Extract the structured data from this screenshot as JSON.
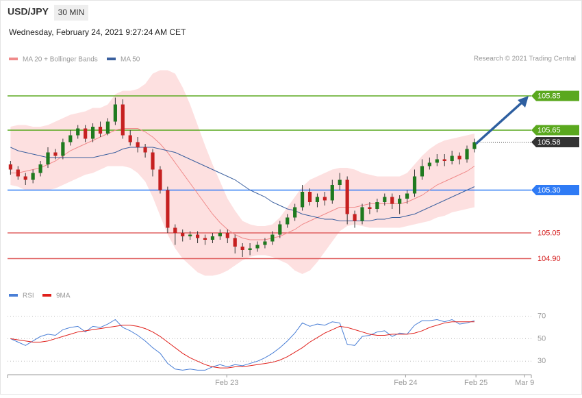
{
  "chart_data": [
    {
      "type": "candlestick",
      "title": "USD/JPY",
      "timeframe": "30 MIN",
      "subtitle": "Wednesday, February 24, 2021 9:27:24 AM CET",
      "source": "Research © 2021 Trading Central",
      "xlim": [
        -0.4,
        69.6
      ],
      "ylim": [
        104.77,
        106.01
      ],
      "up_color": "#1f7a1f",
      "down_color": "#c62020",
      "open": [
        105.45,
        105.42,
        105.38,
        105.36,
        105.4,
        105.45,
        105.52,
        105.5,
        105.58,
        105.62,
        105.66,
        105.6,
        105.67,
        105.63,
        105.7,
        105.8,
        105.62,
        105.58,
        105.55,
        105.52,
        105.42,
        105.3,
        105.08,
        105.05,
        105.03,
        105.04,
        105.02,
        105.01,
        105.03,
        105.05,
        105.02,
        104.97,
        104.95,
        104.96,
        104.98,
        105.0,
        105.04,
        105.1,
        105.14,
        105.2,
        105.29,
        105.23,
        105.26,
        105.24,
        105.33,
        105.36,
        105.16,
        105.12,
        105.2,
        105.19,
        105.23,
        105.26,
        105.22,
        105.25,
        105.28,
        105.38,
        105.44,
        105.46,
        105.48,
        105.47,
        105.5,
        105.48,
        105.54
      ],
      "high": [
        105.47,
        105.44,
        105.4,
        105.42,
        105.47,
        105.55,
        105.54,
        105.6,
        105.65,
        105.68,
        105.68,
        105.69,
        105.7,
        105.72,
        105.84,
        105.83,
        105.65,
        105.61,
        105.57,
        105.54,
        105.44,
        105.32,
        105.1,
        105.07,
        105.06,
        105.06,
        105.04,
        105.05,
        105.07,
        105.07,
        105.04,
        104.99,
        104.99,
        105.0,
        105.02,
        105.06,
        105.12,
        105.16,
        105.22,
        105.33,
        105.31,
        105.28,
        105.29,
        105.36,
        105.4,
        105.38,
        105.18,
        105.22,
        105.23,
        105.25,
        105.28,
        105.28,
        105.27,
        105.3,
        105.42,
        105.48,
        105.49,
        105.51,
        105.51,
        105.53,
        105.52,
        105.56,
        105.6
      ],
      "low": [
        105.39,
        105.36,
        105.33,
        105.34,
        105.38,
        105.43,
        105.48,
        105.48,
        105.56,
        105.6,
        105.58,
        105.58,
        105.61,
        105.62,
        105.68,
        105.6,
        105.56,
        105.52,
        105.49,
        105.38,
        105.28,
        105.05,
        104.98,
        105.0,
        105.01,
        104.99,
        104.98,
        104.99,
        105.01,
        104.99,
        104.93,
        104.91,
        104.92,
        104.94,
        104.96,
        104.98,
        105.02,
        105.08,
        105.12,
        105.18,
        105.21,
        105.2,
        105.21,
        105.22,
        105.3,
        105.1,
        105.08,
        105.1,
        105.16,
        105.17,
        105.21,
        105.19,
        105.16,
        105.22,
        105.26,
        105.36,
        105.42,
        105.44,
        105.44,
        105.45,
        105.45,
        105.46,
        105.52
      ],
      "close": [
        105.42,
        105.38,
        105.36,
        105.4,
        105.45,
        105.52,
        105.5,
        105.58,
        105.62,
        105.66,
        105.6,
        105.67,
        105.63,
        105.7,
        105.8,
        105.62,
        105.58,
        105.55,
        105.52,
        105.42,
        105.3,
        105.08,
        105.05,
        105.03,
        105.04,
        105.02,
        105.01,
        105.03,
        105.05,
        105.02,
        104.97,
        104.95,
        104.96,
        104.98,
        105.0,
        105.04,
        105.1,
        105.14,
        105.2,
        105.29,
        105.23,
        105.26,
        105.24,
        105.33,
        105.36,
        105.16,
        105.12,
        105.2,
        105.19,
        105.23,
        105.26,
        105.22,
        105.25,
        105.28,
        105.38,
        105.44,
        105.46,
        105.48,
        105.47,
        105.5,
        105.48,
        105.54,
        105.58
      ],
      "series": [
        {
          "name": "MA 20 + Bollinger Bands",
          "color": "#f08a8a",
          "band_color": "#fde0e0",
          "values": [
            105.4,
            105.4,
            105.41,
            105.42,
            105.43,
            105.45,
            105.47,
            105.5,
            105.53,
            105.55,
            105.57,
            105.59,
            105.61,
            105.63,
            105.65,
            105.66,
            105.66,
            105.66,
            105.64,
            105.61,
            105.57,
            105.52,
            105.46,
            105.4,
            105.34,
            105.28,
            105.22,
            105.16,
            105.11,
            105.07,
            105.04,
            105.02,
            105.01,
            105.01,
            105.01,
            105.02,
            105.03,
            105.05,
            105.07,
            105.1,
            105.12,
            105.14,
            105.16,
            105.18,
            105.2,
            105.2,
            105.2,
            105.21,
            105.22,
            105.22,
            105.22,
            105.22,
            105.22,
            105.23,
            105.25,
            105.27,
            105.3,
            105.33,
            105.35,
            105.37,
            105.39,
            105.41,
            105.44
          ],
          "upper": [
            105.67,
            105.68,
            105.68,
            105.67,
            105.67,
            105.68,
            105.7,
            105.72,
            105.74,
            105.75,
            105.76,
            105.78,
            105.78,
            105.8,
            105.86,
            105.88,
            105.88,
            105.89,
            105.92,
            105.98,
            106.0,
            106.0,
            105.98,
            105.9,
            105.8,
            105.68,
            105.56,
            105.45,
            105.35,
            105.25,
            105.18,
            105.12,
            105.1,
            105.09,
            105.09,
            105.1,
            105.14,
            105.2,
            105.26,
            105.32,
            105.36,
            105.38,
            105.4,
            105.42,
            105.43,
            105.43,
            105.42,
            105.4,
            105.39,
            105.38,
            105.38,
            105.38,
            105.38,
            105.4,
            105.45,
            105.5,
            105.54,
            105.57,
            105.59,
            105.6,
            105.61,
            105.62,
            105.63
          ],
          "lower": [
            105.33,
            105.32,
            105.3,
            105.3,
            105.3,
            105.3,
            105.31,
            105.33,
            105.35,
            105.37,
            105.39,
            105.4,
            105.42,
            105.44,
            105.44,
            105.44,
            105.43,
            105.4,
            105.35,
            105.26,
            105.15,
            105.04,
            104.96,
            104.9,
            104.86,
            104.82,
            104.8,
            104.8,
            104.81,
            104.83,
            104.86,
            104.89,
            104.91,
            104.92,
            104.92,
            104.91,
            104.89,
            104.87,
            104.83,
            104.81,
            104.83,
            104.88,
            104.94,
            105.0,
            105.06,
            105.09,
            105.1,
            105.09,
            105.08,
            105.08,
            105.08,
            105.08,
            105.08,
            105.09,
            105.1,
            105.11,
            105.12,
            105.14,
            105.15,
            105.17,
            105.18,
            105.19,
            105.2
          ]
        },
        {
          "name": "MA 50",
          "color": "#3a5f9e",
          "values": [
            105.55,
            105.53,
            105.52,
            105.51,
            105.5,
            105.49,
            105.49,
            105.49,
            105.49,
            105.49,
            105.49,
            105.49,
            105.5,
            105.51,
            105.52,
            105.54,
            105.55,
            105.55,
            105.55,
            105.55,
            105.54,
            105.53,
            105.52,
            105.5,
            105.48,
            105.46,
            105.44,
            105.42,
            105.4,
            105.38,
            105.36,
            105.33,
            105.3,
            105.28,
            105.26,
            105.23,
            105.21,
            105.19,
            105.18,
            105.16,
            105.15,
            105.14,
            105.13,
            105.13,
            105.12,
            105.12,
            105.12,
            105.12,
            105.12,
            105.13,
            105.13,
            105.14,
            105.14,
            105.15,
            105.16,
            105.18,
            105.2,
            105.22,
            105.24,
            105.26,
            105.28,
            105.3,
            105.32
          ]
        }
      ],
      "levels": [
        {
          "value": 105.85,
          "label": "105.85",
          "color": "#5aa81e",
          "style": "box"
        },
        {
          "value": 105.65,
          "label": "105.65",
          "color": "#5aa81e",
          "style": "box"
        },
        {
          "value": 105.58,
          "label": "105.58",
          "color": "#333333",
          "style": "box",
          "line": "dotted"
        },
        {
          "value": 105.3,
          "label": "105.30",
          "color": "#2f7bf5",
          "style": "box"
        },
        {
          "value": 105.05,
          "label": "105.05",
          "color": "#e06060",
          "style": "text"
        },
        {
          "value": 104.9,
          "label": "104.90",
          "color": "#e06060",
          "style": "text"
        }
      ]
    },
    {
      "type": "line",
      "xlim": [
        -0.4,
        69.6
      ],
      "ylim": [
        18,
        74
      ],
      "yticks": [
        70,
        50,
        30
      ],
      "grid": true,
      "xticks": [
        {
          "value": 28.9,
          "label": "Feb 23"
        },
        {
          "value": 52.8,
          "label": "Feb 24"
        },
        {
          "value": 62.2,
          "label": "Feb 25"
        },
        {
          "value": 68.7,
          "label": "Mar 9"
        }
      ],
      "series": [
        {
          "name": "RSI",
          "color": "#4a7fd6",
          "values": [
            50,
            47,
            44,
            48,
            52,
            54,
            53,
            58,
            60,
            61,
            56,
            61,
            60,
            63,
            67,
            60,
            57,
            53,
            48,
            42,
            37,
            28,
            23,
            22,
            23,
            22,
            22,
            25,
            27,
            25,
            27,
            26,
            28,
            30,
            33,
            37,
            42,
            48,
            55,
            64,
            61,
            63,
            62,
            65,
            64,
            45,
            44,
            52,
            53,
            56,
            57,
            52,
            55,
            54,
            62,
            66,
            66,
            67,
            65,
            67,
            63,
            64,
            66
          ]
        },
        {
          "name": "9MA",
          "color": "#e0201b",
          "values": [
            50,
            49,
            48,
            47,
            47,
            48,
            50,
            52,
            54,
            56,
            57,
            58,
            59,
            60,
            61,
            62,
            62,
            61,
            59,
            56,
            52,
            47,
            42,
            37,
            33,
            30,
            27,
            25,
            24,
            24,
            25,
            25,
            26,
            27,
            28,
            29,
            31,
            34,
            38,
            42,
            47,
            51,
            55,
            58,
            61,
            60,
            58,
            56,
            54,
            53,
            53,
            54,
            54,
            54,
            55,
            57,
            60,
            62,
            64,
            65,
            65,
            65,
            65
          ]
        }
      ]
    }
  ]
}
